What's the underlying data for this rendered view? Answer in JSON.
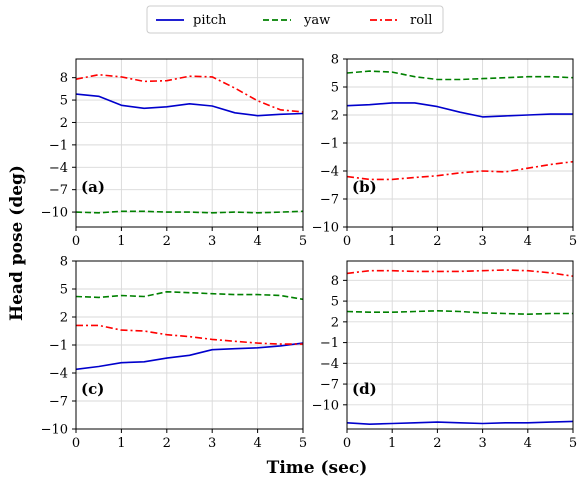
{
  "legend": [
    "pitch",
    "yaw",
    "roll"
  ],
  "colors": {
    "pitch": "#0000cc",
    "yaw": "#008000",
    "roll": "#ff0000"
  },
  "axes": {
    "ylabel": "Head pose (deg)",
    "xlabel": "Time (sec)"
  },
  "chart_data": [
    {
      "type": "line",
      "label": "(a)",
      "xlim": [
        0,
        5
      ],
      "ylim": [
        -12,
        10.5
      ],
      "yticks": [
        8,
        5,
        2,
        -1,
        -4,
        -7,
        -10
      ],
      "xticks": [
        0,
        1,
        2,
        3,
        4,
        5
      ],
      "grid": true,
      "label_position": "bottom-left",
      "x": [
        0,
        0.5,
        1,
        1.5,
        2,
        2.5,
        3,
        3.5,
        4,
        4.5,
        5
      ],
      "series": [
        {
          "name": "pitch",
          "values": [
            5.8,
            5.5,
            4.3,
            3.9,
            4.1,
            4.5,
            4.2,
            3.3,
            2.9,
            3.1,
            3.2
          ]
        },
        {
          "name": "yaw",
          "values": [
            -10.0,
            -10.1,
            -9.9,
            -9.9,
            -10.0,
            -10.0,
            -10.1,
            -10.0,
            -10.1,
            -10.0,
            -9.9
          ]
        },
        {
          "name": "roll",
          "values": [
            7.8,
            8.4,
            8.1,
            7.5,
            7.6,
            8.2,
            8.1,
            6.6,
            4.9,
            3.7,
            3.4
          ]
        }
      ]
    },
    {
      "type": "line",
      "label": "(b)",
      "xlim": [
        0,
        5
      ],
      "ylim": [
        -10,
        8
      ],
      "yticks": [
        8,
        5,
        2,
        -1,
        -4,
        -7,
        -10
      ],
      "xticks": [
        0,
        1,
        2,
        3,
        4,
        5
      ],
      "grid": true,
      "label_position": "bottom-left",
      "x": [
        0,
        0.5,
        1,
        1.5,
        2,
        2.5,
        3,
        3.5,
        4,
        4.5,
        5
      ],
      "series": [
        {
          "name": "pitch",
          "values": [
            3.0,
            3.1,
            3.3,
            3.3,
            2.9,
            2.3,
            1.8,
            1.9,
            2.0,
            2.1,
            2.1
          ]
        },
        {
          "name": "yaw",
          "values": [
            6.5,
            6.7,
            6.6,
            6.1,
            5.8,
            5.8,
            5.9,
            6.0,
            6.1,
            6.1,
            6.0
          ]
        },
        {
          "name": "roll",
          "values": [
            -4.6,
            -4.9,
            -4.9,
            -4.7,
            -4.5,
            -4.2,
            -4.0,
            -4.1,
            -3.7,
            -3.3,
            -3.0
          ]
        }
      ]
    },
    {
      "type": "line",
      "label": "(c)",
      "xlim": [
        0,
        5
      ],
      "ylim": [
        -10,
        8
      ],
      "yticks": [
        8,
        5,
        2,
        -1,
        -4,
        -7,
        -10
      ],
      "xticks": [
        0,
        1,
        2,
        3,
        4,
        5
      ],
      "grid": true,
      "label_position": "bottom-left",
      "x": [
        0,
        0.5,
        1,
        1.5,
        2,
        2.5,
        3,
        3.5,
        4,
        4.5,
        5
      ],
      "series": [
        {
          "name": "pitch",
          "values": [
            -3.6,
            -3.3,
            -2.9,
            -2.8,
            -2.4,
            -2.1,
            -1.5,
            -1.4,
            -1.3,
            -1.1,
            -0.8
          ]
        },
        {
          "name": "yaw",
          "values": [
            4.2,
            4.1,
            4.3,
            4.2,
            4.7,
            4.6,
            4.5,
            4.4,
            4.4,
            4.3,
            3.9
          ]
        },
        {
          "name": "roll",
          "values": [
            1.1,
            1.1,
            0.6,
            0.5,
            0.1,
            -0.1,
            -0.4,
            -0.6,
            -0.8,
            -0.9,
            -0.9
          ]
        }
      ]
    },
    {
      "type": "line",
      "label": "(d)",
      "xlim": [
        0,
        5
      ],
      "ylim": [
        -13.5,
        10.8
      ],
      "yticks": [
        8,
        5,
        2,
        -1,
        -4,
        -7,
        -10
      ],
      "xticks": [
        0,
        1,
        2,
        3,
        4,
        5
      ],
      "grid": true,
      "label_position": "bottom-left",
      "x": [
        0,
        0.5,
        1,
        1.5,
        2,
        2.5,
        3,
        3.5,
        4,
        4.5,
        5
      ],
      "series": [
        {
          "name": "pitch",
          "values": [
            -12.6,
            -12.8,
            -12.7,
            -12.6,
            -12.5,
            -12.6,
            -12.7,
            -12.6,
            -12.6,
            -12.5,
            -12.4
          ]
        },
        {
          "name": "yaw",
          "values": [
            3.5,
            3.4,
            3.4,
            3.5,
            3.6,
            3.5,
            3.3,
            3.2,
            3.1,
            3.2,
            3.2
          ]
        },
        {
          "name": "roll",
          "values": [
            9.0,
            9.4,
            9.4,
            9.3,
            9.3,
            9.3,
            9.4,
            9.5,
            9.4,
            9.1,
            8.6
          ]
        }
      ]
    }
  ]
}
